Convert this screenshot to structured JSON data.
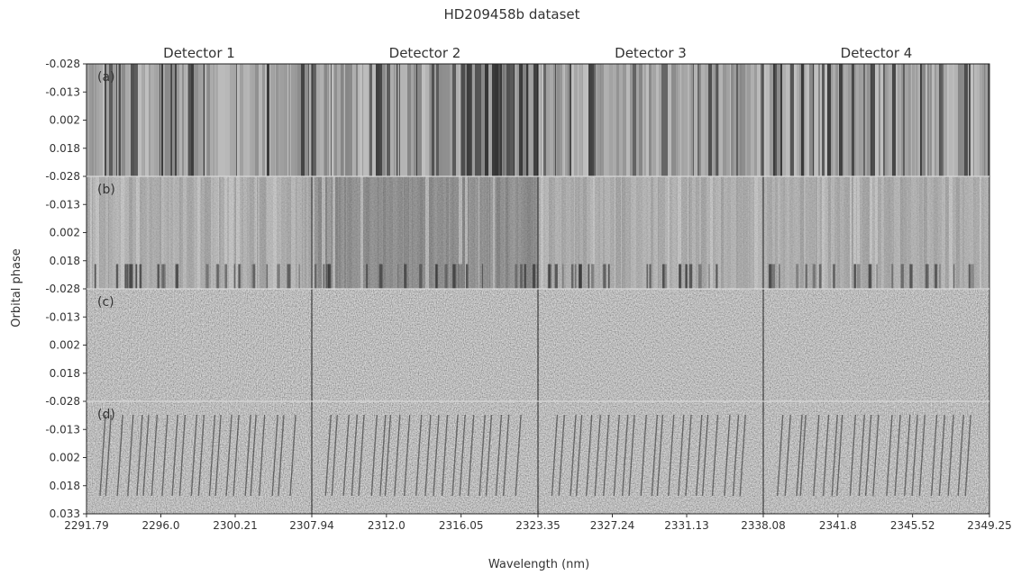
{
  "chart_data": {
    "type": "heatmap",
    "title": "HD209458b dataset",
    "xlabel": "Wavelength (nm)",
    "ylabel": "Orbital phase",
    "detectors": [
      {
        "name": "Detector 1",
        "x_ticks": [
          "2291.79",
          "2296.0",
          "2300.21",
          "2307.94"
        ],
        "tint": "#8a8a8a"
      },
      {
        "name": "Detector 2",
        "x_ticks": [
          "2312.0",
          "2316.05",
          "2323.35"
        ],
        "tint": "#7c7c7c"
      },
      {
        "name": "Detector 3",
        "x_ticks": [
          "2327.24",
          "2331.13",
          "2338.08"
        ],
        "tint": "#9a9a9a"
      },
      {
        "name": "Detector 4",
        "x_ticks": [
          "2341.8",
          "2345.52",
          "2349.25"
        ],
        "tint": "#8c8c8c"
      }
    ],
    "rows": [
      {
        "label": "(a)",
        "kind": "raw",
        "y_ticks": [
          "-0.028",
          "-0.013",
          "0.002",
          "0.018"
        ]
      },
      {
        "label": "(b)",
        "kind": "normalized",
        "y_ticks": [
          "-0.028",
          "-0.013",
          "0.002",
          "0.018"
        ]
      },
      {
        "label": "(c)",
        "kind": "residual",
        "y_ticks": [
          "-0.028",
          "-0.013",
          "0.002",
          "0.018"
        ]
      },
      {
        "label": "(d)",
        "kind": "injected",
        "y_ticks": [
          "-0.028",
          "-0.013",
          "0.002",
          "0.018",
          "0.033"
        ]
      }
    ],
    "colormap": "grayscale"
  }
}
